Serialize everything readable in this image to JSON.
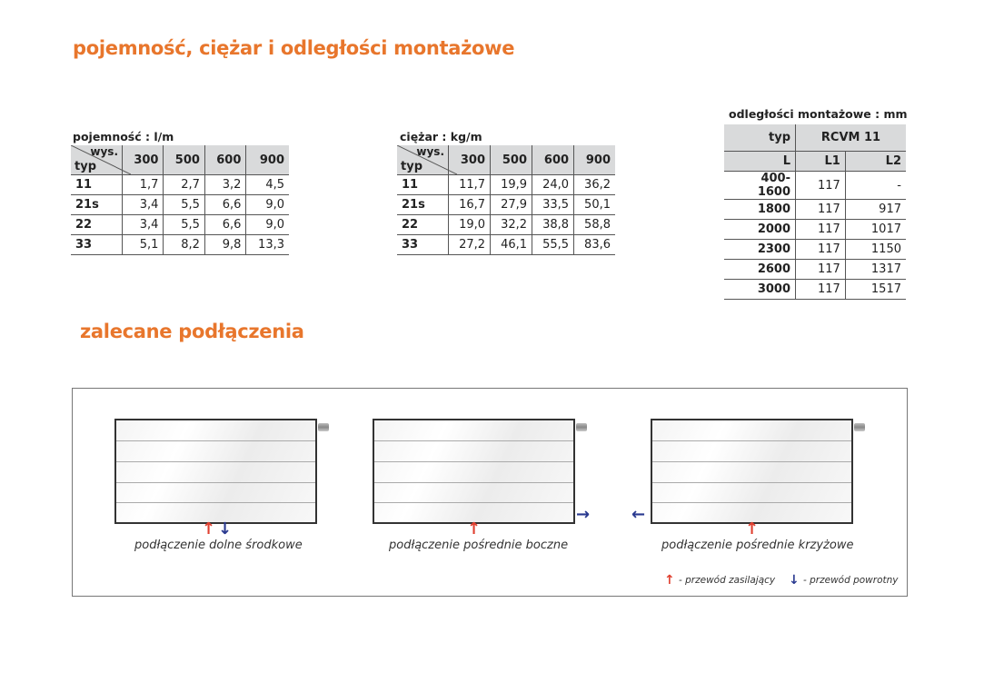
{
  "heading_main": "pojemność, ciężar i odległości montażowe",
  "heading_connections": "zalecane podłączenia",
  "capacity": {
    "caption": "pojemność : l/m",
    "corner_top": "wys.",
    "corner_bottom": "typ",
    "columns": [
      "300",
      "500",
      "600",
      "900"
    ],
    "rows": [
      {
        "type": "11",
        "values": [
          "1,7",
          "2,7",
          "3,2",
          "4,5"
        ]
      },
      {
        "type": "21s",
        "values": [
          "3,4",
          "5,5",
          "6,6",
          "9,0"
        ]
      },
      {
        "type": "22",
        "values": [
          "3,4",
          "5,5",
          "6,6",
          "9,0"
        ]
      },
      {
        "type": "33",
        "values": [
          "5,1",
          "8,2",
          "9,8",
          "13,3"
        ]
      }
    ]
  },
  "weight": {
    "caption": "ciężar : kg/m",
    "corner_top": "wys.",
    "corner_bottom": "typ",
    "columns": [
      "300",
      "500",
      "600",
      "900"
    ],
    "rows": [
      {
        "type": "11",
        "values": [
          "11,7",
          "19,9",
          "24,0",
          "36,2"
        ]
      },
      {
        "type": "21s",
        "values": [
          "16,7",
          "27,9",
          "33,5",
          "50,1"
        ]
      },
      {
        "type": "22",
        "values": [
          "19,0",
          "32,2",
          "38,8",
          "58,8"
        ]
      },
      {
        "type": "33",
        "values": [
          "27,2",
          "46,1",
          "55,5",
          "83,6"
        ]
      }
    ]
  },
  "mounting": {
    "caption": "odległości montażowe : mm",
    "type_label": "typ",
    "model": "RCVM 11",
    "columns": [
      "L",
      "L1",
      "L2"
    ],
    "rows": [
      [
        "400-1600",
        "117",
        "-"
      ],
      [
        "1800",
        "117",
        "917"
      ],
      [
        "2000",
        "117",
        "1017"
      ],
      [
        "2300",
        "117",
        "1150"
      ],
      [
        "2600",
        "117",
        "1317"
      ],
      [
        "3000",
        "117",
        "1517"
      ]
    ]
  },
  "connections": [
    {
      "label": "podłączenie dolne środkowe"
    },
    {
      "label": "podłączenie pośrednie boczne"
    },
    {
      "label": "podłączenie pośrednie krzyżowe"
    }
  ],
  "legend": {
    "supply": "- przewód zasilający",
    "return": "- przewód powrotny"
  },
  "colors": {
    "accent": "#e8762c",
    "supply": "#e04030",
    "return": "#2a3a90",
    "header_bg": "#d9dadb"
  }
}
